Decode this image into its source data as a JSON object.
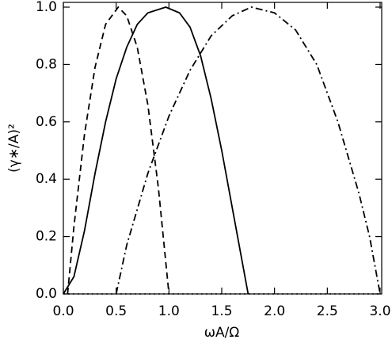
{
  "chart_data": {
    "type": "line",
    "x_label": "ωA/Ω",
    "y_label": "(γ∗/A)²",
    "xlim": [
      0,
      3
    ],
    "ylim": [
      0,
      1
    ],
    "xticks": [
      {
        "value": 0,
        "label": "0.0"
      },
      {
        "value": 0.5,
        "label": "0.5"
      },
      {
        "value": 1,
        "label": "1.0"
      },
      {
        "value": 1.5,
        "label": "1.5"
      },
      {
        "value": 2,
        "label": "2.0"
      },
      {
        "value": 2.5,
        "label": "2.5"
      },
      {
        "value": 3,
        "label": "3.0"
      }
    ],
    "yticks": [
      {
        "value": 0,
        "label": "0.0"
      },
      {
        "value": 0.2,
        "label": "0.2"
      },
      {
        "value": 0.4,
        "label": "0.4"
      },
      {
        "value": 0.6,
        "label": "0.6"
      },
      {
        "value": 0.8,
        "label": "0.8"
      },
      {
        "value": 1,
        "label": "1.0"
      }
    ],
    "series": [
      {
        "color": "#000000",
        "linestyle": "dashed",
        "x": [
          0.04,
          0.1,
          0.2,
          0.3,
          0.4,
          0.52,
          0.6,
          0.7,
          0.8,
          0.9,
          1.0
        ],
        "values": [
          0,
          0.234,
          0.556,
          0.79,
          0.94,
          1,
          0.97,
          0.86,
          0.66,
          0.37,
          0
        ]
      },
      {
        "color": "#000000",
        "linestyle": "solid",
        "x": [
          0,
          0.1,
          0.2,
          0.3,
          0.4,
          0.5,
          0.6,
          0.7,
          0.8,
          0.97,
          1.1,
          1.2,
          1.3,
          1.4,
          1.5,
          1.6,
          1.7,
          1.75
        ],
        "values": [
          0,
          0.06,
          0.22,
          0.42,
          0.6,
          0.75,
          0.86,
          0.94,
          0.98,
          1,
          0.98,
          0.93,
          0.83,
          0.68,
          0.5,
          0.3,
          0.1,
          0
        ]
      },
      {
        "color": "#000000",
        "linestyle": "dashdot",
        "x": [
          0.5,
          0.6,
          0.8,
          1.0,
          1.2,
          1.4,
          1.6,
          1.78,
          2.0,
          2.2,
          2.4,
          2.6,
          2.8,
          2.9,
          3.0
        ],
        "values": [
          0,
          0.17,
          0.42,
          0.62,
          0.78,
          0.9,
          0.97,
          1,
          0.98,
          0.92,
          0.8,
          0.6,
          0.35,
          0.2,
          0
        ]
      },
      {
        "color": "#000000",
        "linestyle": "dotted",
        "x": [
          0,
          3
        ],
        "values": [
          0,
          0
        ]
      }
    ]
  }
}
